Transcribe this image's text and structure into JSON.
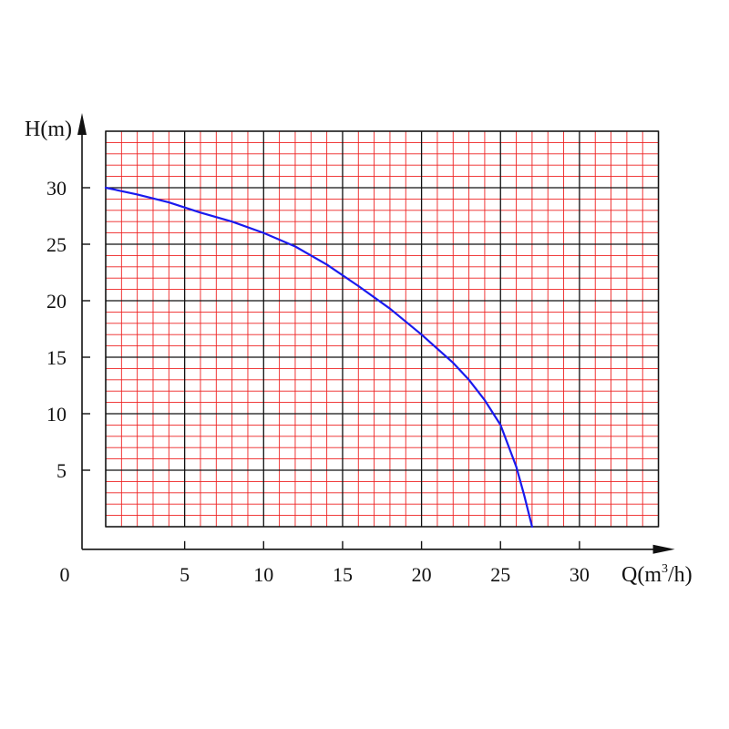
{
  "chart_data": {
    "type": "line",
    "xlabel": "Q(m³/h)",
    "xlabel_parts": {
      "prefix": "Q(m",
      "sup": "3",
      "suffix": "/h)"
    },
    "ylabel": "H(m)",
    "xlim": [
      -1.5,
      35
    ],
    "ylim": [
      -2,
      35
    ],
    "grid_area": {
      "x": [
        0,
        35
      ],
      "y": [
        0,
        35
      ]
    },
    "xticks": [
      0,
      5,
      10,
      15,
      20,
      25,
      30
    ],
    "xtick_labels": [
      "0",
      "5",
      "10",
      "15",
      "20",
      "25",
      "30"
    ],
    "yticks": [
      5,
      10,
      15,
      20,
      25,
      30
    ],
    "ytick_labels": [
      "5",
      "10",
      "15",
      "20",
      "25",
      "30"
    ],
    "grid": {
      "minor_step": 1,
      "major_step": 5,
      "minor_color": "#ee2222",
      "major_color": "#111111"
    },
    "series": [
      {
        "color": "#1a1aee",
        "x": [
          0,
          2,
          4,
          6,
          8,
          10,
          12,
          14,
          16,
          18,
          20,
          22,
          23,
          24,
          25,
          26,
          26.5,
          27
        ],
        "y": [
          30,
          29.4,
          28.7,
          27.8,
          27,
          26,
          24.8,
          23.2,
          21.3,
          19.3,
          17,
          14.5,
          13,
          11.2,
          9,
          5.3,
          2.8,
          0
        ]
      }
    ]
  }
}
